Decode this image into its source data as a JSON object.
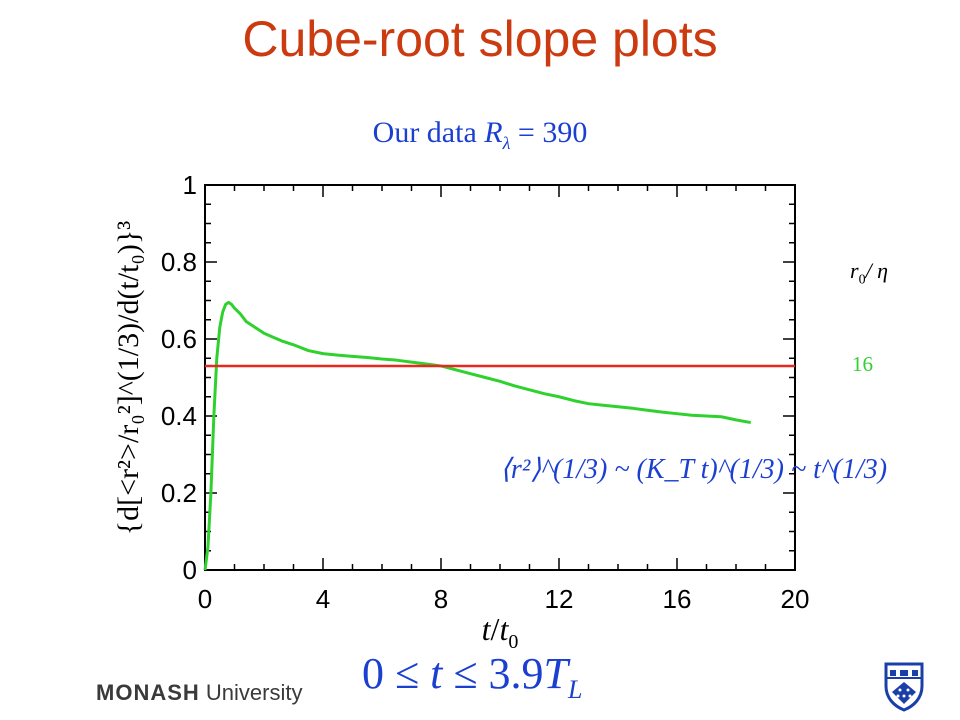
{
  "slide": {
    "title": "Cube-root slope plots",
    "subtitle": {
      "prefix": "Our data ",
      "R": "R",
      "lambda": "λ",
      "suffix": " = 390"
    },
    "time_range": {
      "prefix": "0 ≤ ",
      "t": "t",
      "mid": " ≤ 3.9",
      "T": "T",
      "L": "L"
    },
    "side_label": {
      "r": "r",
      "zero": "0",
      "rest": "/ η"
    },
    "side_value": "16",
    "logo": {
      "strong": "MONASH",
      "rest": " University"
    },
    "crest_icon": "university-crest-icon"
  },
  "chart_data": {
    "type": "line",
    "xlim": [
      0,
      20
    ],
    "ylim": [
      0,
      1
    ],
    "x_ticks": [
      0,
      4,
      8,
      12,
      16,
      20
    ],
    "y_ticks": [
      0,
      0.2,
      0.4,
      0.6,
      0.8,
      1
    ],
    "x_tick_labels": [
      "0",
      "4",
      "8",
      "12",
      "16",
      "20"
    ],
    "y_tick_labels": [
      "0",
      "0.2",
      "0.4",
      "0.6",
      "0.8",
      "1"
    ],
    "xlabel": {
      "t": "t",
      "slash": "/",
      "t0": "t",
      "sub": "0"
    },
    "ylabel": "{d[<r²>/r₀²]^(1/3)/d(t/t₀)}³",
    "annotation": "⟨r²⟩^(1/3) ~ (K_T t)^(1/3) ~ t^(1/3)",
    "grid": false,
    "series": [
      {
        "name": "16",
        "color": "#2fd12f",
        "x": [
          0.0,
          0.1,
          0.2,
          0.3,
          0.4,
          0.5,
          0.6,
          0.7,
          0.8,
          0.9,
          1.0,
          1.2,
          1.4,
          1.6,
          1.8,
          2.0,
          2.3,
          2.6,
          3.0,
          3.5,
          4.0,
          4.5,
          5.0,
          5.5,
          6.0,
          6.5,
          7.0,
          7.5,
          8.0,
          8.5,
          9.0,
          9.5,
          10.0,
          10.5,
          11.0,
          11.5,
          12.0,
          12.5,
          13.0,
          13.5,
          14.0,
          14.5,
          15.0,
          15.5,
          16.0,
          16.5,
          17.0,
          17.5,
          18.0,
          18.5
        ],
        "y": [
          0.0,
          0.06,
          0.2,
          0.4,
          0.55,
          0.63,
          0.67,
          0.69,
          0.695,
          0.69,
          0.68,
          0.665,
          0.645,
          0.635,
          0.625,
          0.615,
          0.605,
          0.595,
          0.585,
          0.57,
          0.562,
          0.558,
          0.555,
          0.552,
          0.548,
          0.545,
          0.54,
          0.535,
          0.53,
          0.52,
          0.51,
          0.5,
          0.49,
          0.478,
          0.468,
          0.458,
          0.45,
          0.44,
          0.432,
          0.428,
          0.424,
          0.42,
          0.415,
          0.41,
          0.406,
          0.402,
          0.4,
          0.398,
          0.39,
          0.383
        ]
      },
      {
        "name": "",
        "color": "#e8281e",
        "x": [
          0,
          20
        ],
        "y": [
          0.53,
          0.53
        ]
      }
    ]
  }
}
